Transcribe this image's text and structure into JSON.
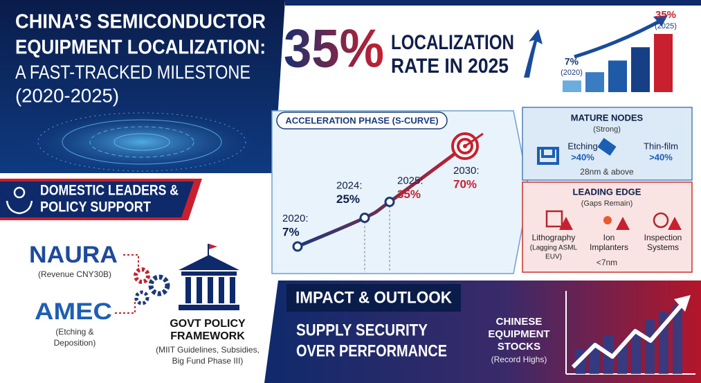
{
  "header": {
    "title_lines": [
      "CHINA’S SEMICONDUCTOR",
      "EQUIPMENT LOCALIZATION:"
    ],
    "subtitle_lines": [
      "A FAST-TRACKED MILESTONE",
      "(2020-2025)"
    ]
  },
  "headline": {
    "value_label": "35%",
    "text_lines": [
      "LOCALIZATION",
      "RATE IN 2025"
    ]
  },
  "mini_chart": {
    "values": [
      7,
      12,
      19,
      27,
      35
    ],
    "start_label": "7%",
    "start_year": "(2020)",
    "end_label": "35%",
    "end_year": "(2025)"
  },
  "leaders": {
    "title_lines": [
      "DOMESTIC LEADERS &",
      "POLICY SUPPORT"
    ],
    "companies": [
      {
        "name": "NAURA",
        "note_lines": [
          "(Revenue CNY30B)"
        ]
      },
      {
        "name": "AMEC",
        "note_lines": [
          "(Etching &",
          "Deposition)"
        ]
      }
    ],
    "policy": {
      "title_lines": [
        "GOVT POLICY",
        "FRAMEWORK"
      ],
      "note_lines": [
        "(MIIT Guidelines, Subsidies,",
        "Big Fund Phase III)"
      ]
    }
  },
  "s_curve": {
    "title": "ACCELERATION PHASE (S-CURVE)",
    "points": [
      {
        "year": "2020:",
        "label": "7%",
        "value": 7
      },
      {
        "year": "2024:",
        "label": "25%",
        "value": 25
      },
      {
        "year": "2025:",
        "label": "35%",
        "value": 35
      },
      {
        "year": "2030:",
        "label": "70%",
        "value": 70
      }
    ]
  },
  "nodes": {
    "mature": {
      "title": "MATURE NODES",
      "subtitle": "(Strong)",
      "items": [
        {
          "name": "Etching",
          "share": ">40%"
        },
        {
          "name": "Thin-film",
          "share": ">40%"
        }
      ],
      "note": "28nm & above"
    },
    "leading": {
      "title": "LEADING EDGE",
      "subtitle": "(Gaps Remain)",
      "items": [
        {
          "name_lines": [
            "Lithography",
            "(Lagging ASML",
            "EUV)"
          ]
        },
        {
          "name_lines": [
            "Ion",
            "Implanters"
          ]
        },
        {
          "name_lines": [
            "Inspection",
            "Systems"
          ]
        }
      ],
      "note": "<7nm"
    }
  },
  "outlook": {
    "title": "IMPACT & OUTLOOK",
    "message_lines": [
      "SUPPLY SECURITY",
      "OVER PERFORMANCE"
    ],
    "stocks_lines": [
      "CHINESE",
      "EQUIPMENT",
      "STOCKS"
    ],
    "stocks_note": "(Record Highs)"
  }
}
